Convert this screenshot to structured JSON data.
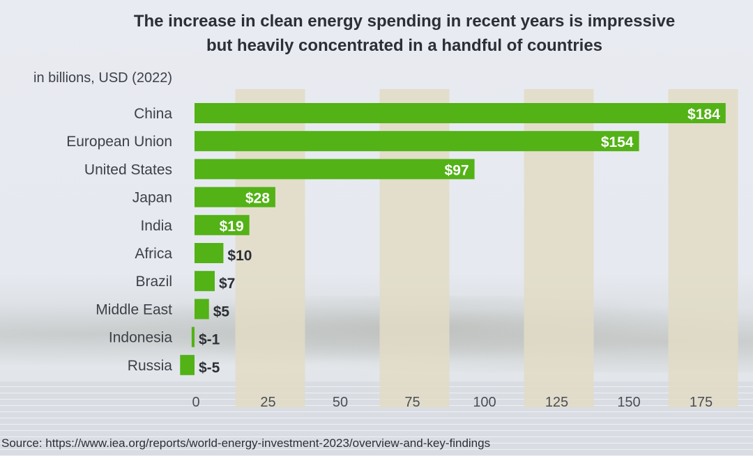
{
  "chart_data": {
    "type": "bar",
    "orientation": "horizontal",
    "title_lines": [
      "The increase in clean energy spending in recent years is impressive",
      "but heavily concentrated in a handful of countries"
    ],
    "subtitle": "in billions, USD (2022)",
    "categories": [
      "China",
      "European Union",
      "United States",
      "Japan",
      "India",
      "Africa",
      "Brazil",
      "Middle East",
      "Indonesia",
      "Russia"
    ],
    "values": [
      184,
      154,
      97,
      28,
      19,
      10,
      7,
      5,
      -1,
      -5
    ],
    "value_labels": [
      "$184",
      "$154",
      "$97",
      "$28",
      "$19",
      "$10",
      "$7",
      "$5",
      "$-1",
      "$-5"
    ],
    "xlabel": "",
    "ylabel": "",
    "xlim": [
      -5,
      187
    ],
    "xticks": [
      0,
      25,
      50,
      75,
      100,
      125,
      150,
      175
    ],
    "xtick_labels": [
      "0",
      "25",
      "50",
      "75",
      "100",
      "125",
      "150",
      "175"
    ],
    "shaded_bands_at_ticks": [
      25,
      75,
      125,
      175
    ],
    "grid": false,
    "legend": "none",
    "source": "Source: https://www.iea.org/reports/world-energy-investment-2023/overview-and-key-findings"
  },
  "colors": {
    "bar": "#52b216",
    "band": "#e2dcc6",
    "title": "#2c2f35"
  }
}
